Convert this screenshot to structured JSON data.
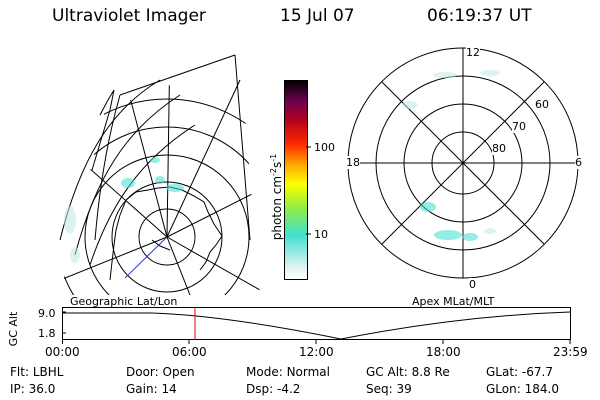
{
  "header": {
    "instrument": "Ultraviolet Imager",
    "date": "15 Jul 07",
    "time": "06:19:37 UT"
  },
  "left_map": {
    "label": "Geographic Lat/Lon"
  },
  "right_map": {
    "label": "Apex MLat/MLT",
    "mlt_labels": {
      "top": "12",
      "left": "18",
      "right": "6",
      "bottom": "0"
    },
    "lat_labels": [
      "60",
      "70",
      "80"
    ]
  },
  "colorbar": {
    "unit_label": "photon cm-2s-1",
    "ticks": [
      "100",
      "10"
    ],
    "colors": [
      "#dff3f3",
      "#40e0d0",
      "#7cfc00",
      "#ffff00",
      "#ffa500",
      "#ff0000",
      "#b22222",
      "#8b0051",
      "#2a004f",
      "#000000"
    ]
  },
  "timeline": {
    "ylabel": "GC Alt",
    "y_ticks": [
      "9.0",
      "1.8"
    ],
    "x_ticks": [
      "00:00",
      "06:00",
      "12:00",
      "18:00",
      "23:59"
    ],
    "marker_time": "06:19"
  },
  "status": {
    "row1": [
      {
        "key": "Flt:",
        "value": "LBHL"
      },
      {
        "key": "Door:",
        "value": "Open"
      },
      {
        "key": "Mode:",
        "value": "Normal"
      },
      {
        "key": "GC Alt:",
        "value": "8.8 Re"
      },
      {
        "key": "GLat:",
        "value": "-67.7"
      }
    ],
    "row2": [
      {
        "key": "IP:",
        "value": "36.0"
      },
      {
        "key": "Gain:",
        "value": "14"
      },
      {
        "key": "Dsp:",
        "value": "-4.2"
      },
      {
        "key": "Seq:",
        "value": "39"
      },
      {
        "key": "GLon:",
        "value": "184.0"
      }
    ]
  }
}
